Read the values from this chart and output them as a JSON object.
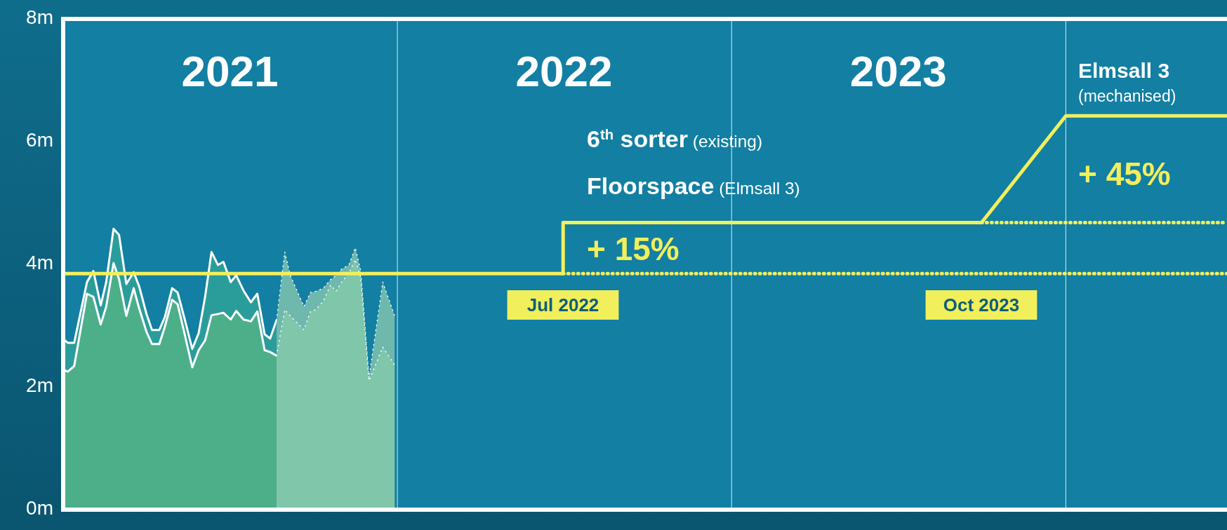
{
  "chart_data": {
    "type": "area",
    "xlim": [
      "2021-01-01",
      "2024-06-25"
    ],
    "xticks": [
      {
        "value": "2021-07-02",
        "label": "2021"
      },
      {
        "value": "2022-07-02",
        "label": "2022"
      },
      {
        "value": "2023-07-02",
        "label": "2023"
      }
    ],
    "ref_lines": [
      {
        "axis": "x",
        "value": "2022-01-01",
        "color": "#ffffff"
      },
      {
        "axis": "x",
        "value": "2023-01-01",
        "color": "#ffffff"
      },
      {
        "axis": "x",
        "value": "2024-01-01",
        "color": "#ffffff"
      }
    ],
    "ylim": [
      0,
      8
    ],
    "yticks": [
      {
        "value": 0,
        "label": "0m"
      },
      {
        "value": 2,
        "label": "2m"
      },
      {
        "value": 4,
        "label": "4m"
      },
      {
        "value": 6,
        "label": "6m"
      },
      {
        "value": 8,
        "label": "8m"
      }
    ],
    "series": [
      {
        "color": "#2a9d9a",
        "line_style": "solid",
        "x": [
          "2021-01-03",
          "2021-01-06",
          "2021-01-13",
          "2021-01-27",
          "2021-02-03",
          "2021-02-11",
          "2021-02-17",
          "2021-02-25",
          "2021-03-03",
          "2021-03-11",
          "2021-03-19",
          "2021-03-25",
          "2021-04-02",
          "2021-04-08",
          "2021-04-16",
          "2021-04-22",
          "2021-04-30",
          "2021-05-06",
          "2021-05-14",
          "2021-05-22",
          "2021-05-29",
          "2021-06-05",
          "2021-06-12",
          "2021-06-19",
          "2021-06-25",
          "2021-07-03",
          "2021-07-09",
          "2021-07-17",
          "2021-07-25",
          "2021-08-01",
          "2021-08-09",
          "2021-08-15",
          "2021-08-22"
        ],
        "values": [
          2.76,
          2.72,
          2.72,
          3.71,
          3.89,
          3.33,
          3.71,
          4.58,
          4.48,
          3.68,
          3.87,
          3.64,
          3.19,
          2.93,
          2.93,
          3.14,
          3.61,
          3.54,
          3.09,
          2.62,
          2.88,
          3.47,
          4.2,
          3.99,
          4.04,
          3.71,
          3.82,
          3.57,
          3.38,
          3.52,
          2.86,
          2.79,
          3.09
        ]
      },
      {
        "color": "#4caf8a",
        "line_style": "solid",
        "x": [
          "2021-01-03",
          "2021-01-06",
          "2021-01-13",
          "2021-01-27",
          "2021-02-03",
          "2021-02-11",
          "2021-02-17",
          "2021-02-25",
          "2021-03-03",
          "2021-03-11",
          "2021-03-19",
          "2021-03-25",
          "2021-04-02",
          "2021-04-08",
          "2021-04-16",
          "2021-04-22",
          "2021-04-30",
          "2021-05-06",
          "2021-05-14",
          "2021-05-22",
          "2021-05-29",
          "2021-06-05",
          "2021-06-12",
          "2021-06-19",
          "2021-06-25",
          "2021-07-03",
          "2021-07-09",
          "2021-07-17",
          "2021-07-25",
          "2021-08-01",
          "2021-08-09",
          "2021-08-15",
          "2021-08-22"
        ],
        "values": [
          2.27,
          2.25,
          2.34,
          3.52,
          3.47,
          3.02,
          3.31,
          4.02,
          3.76,
          3.16,
          3.61,
          3.28,
          2.9,
          2.7,
          2.7,
          2.98,
          3.42,
          3.35,
          2.84,
          2.32,
          2.6,
          2.76,
          3.17,
          3.19,
          3.21,
          3.1,
          3.24,
          3.1,
          3.07,
          3.23,
          2.6,
          2.57,
          2.51
        ]
      },
      {
        "color": "#6fb8ae",
        "line_style": "dotted",
        "x": [
          "2021-08-22",
          "2021-08-31",
          "2021-09-06",
          "2021-09-21",
          "2021-09-28",
          "2021-10-04",
          "2021-10-12",
          "2021-10-20",
          "2021-10-26",
          "2021-11-01",
          "2021-11-09",
          "2021-11-16",
          "2021-11-22",
          "2021-12-01",
          "2021-12-16",
          "2021-12-29"
        ],
        "values": [
          3.09,
          4.2,
          3.82,
          3.31,
          3.54,
          3.56,
          3.61,
          3.75,
          3.82,
          3.92,
          3.99,
          4.27,
          3.89,
          2.15,
          3.71,
          3.16
        ]
      },
      {
        "color": "#80c6ab",
        "line_style": "dotted",
        "x": [
          "2021-08-22",
          "2021-08-31",
          "2021-09-06",
          "2021-09-21",
          "2021-09-28",
          "2021-10-04",
          "2021-10-12",
          "2021-10-20",
          "2021-10-26",
          "2021-11-01",
          "2021-11-09",
          "2021-11-16",
          "2021-11-22",
          "2021-12-01",
          "2021-12-16",
          "2021-12-29"
        ],
        "values": [
          2.51,
          3.26,
          3.16,
          2.93,
          3.23,
          3.26,
          3.4,
          3.66,
          3.56,
          3.71,
          3.85,
          4.08,
          3.78,
          2.1,
          2.65,
          2.36
        ]
      },
      {
        "type": "line",
        "color": "#f2ef5c",
        "line_style": "dotted",
        "x": [
          "2022-07-01",
          "2024-06-25"
        ],
        "values": [
          3.85,
          3.85
        ]
      },
      {
        "type": "line",
        "color": "#f2ef5c",
        "line_style": "dotted",
        "x": [
          "2023-10-01",
          "2024-06-25"
        ],
        "values": [
          4.68,
          4.68
        ]
      },
      {
        "type": "line",
        "color": "#f2ef5c",
        "line_style": "solid",
        "x": [
          "2021-01-01",
          "2022-07-01",
          "2022-07-01",
          "2023-10-01",
          "2024-01-01",
          "2024-06-25"
        ],
        "values": [
          3.85,
          3.85,
          4.68,
          4.68,
          6.42,
          6.42
        ]
      }
    ],
    "annotations": [
      "Elmsall 3",
      "(mechanised)",
      "6$^{th}$ sorter (existing)",
      "Floorspace (Elmsall 3)",
      "+ 15%",
      "+ 45%",
      "Jul 2022",
      "Oct 2023"
    ]
  }
}
